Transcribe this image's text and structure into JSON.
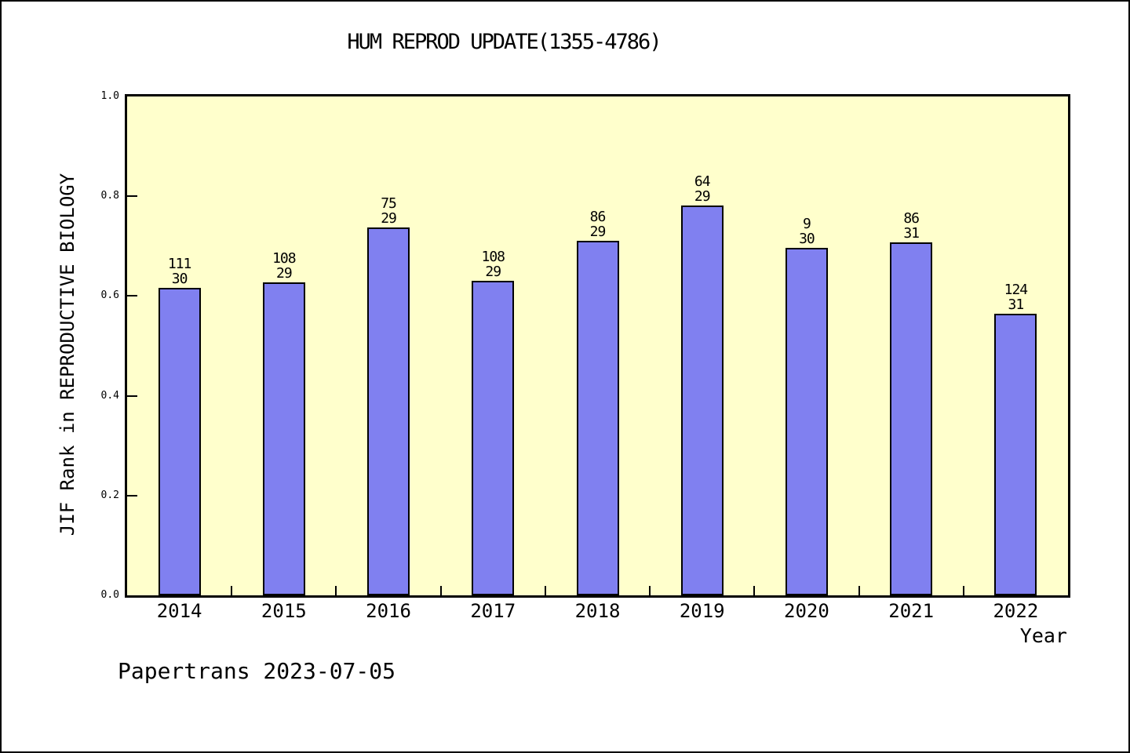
{
  "title": "HUM REPROD UPDATE(1355-4786)",
  "footer": "Papertrans 2023-07-05",
  "chart_data": {
    "type": "bar",
    "title": "HUM REPROD UPDATE(1355-4786)",
    "xlabel": "Year",
    "ylabel": "JIF Rank in REPRODUCTIVE BIOLOGY",
    "categories": [
      "2014",
      "2015",
      "2016",
      "2017",
      "2018",
      "2019",
      "2020",
      "2021",
      "2022"
    ],
    "values": [
      0.617,
      0.628,
      0.738,
      0.63,
      0.711,
      0.782,
      0.696,
      0.708,
      0.565
    ],
    "bar_labels": [
      {
        "top": "111",
        "bottom": "30"
      },
      {
        "top": "108",
        "bottom": "29"
      },
      {
        "top": "75",
        "bottom": "29"
      },
      {
        "top": "108",
        "bottom": "29"
      },
      {
        "top": "86",
        "bottom": "29"
      },
      {
        "top": "64",
        "bottom": "29"
      },
      {
        "top": "9",
        "bottom": "30"
      },
      {
        "top": "86",
        "bottom": "31"
      },
      {
        "top": "124",
        "bottom": "31"
      }
    ],
    "ylim": [
      0.0,
      1.0
    ],
    "yticks": [
      0.0,
      0.2,
      0.4,
      0.6,
      0.8,
      1.0
    ],
    "ytick_labels": [
      "0.0",
      "0.2",
      "0.4",
      "0.6",
      "0.8",
      "1.0"
    ],
    "grid": false,
    "legend": "none",
    "colors": {
      "bar_fill": "#8080f0",
      "bar_edge": "#000000",
      "plot_bg": "#ffffcc",
      "figure_bg": "#ffffff",
      "text": "#000000"
    }
  }
}
